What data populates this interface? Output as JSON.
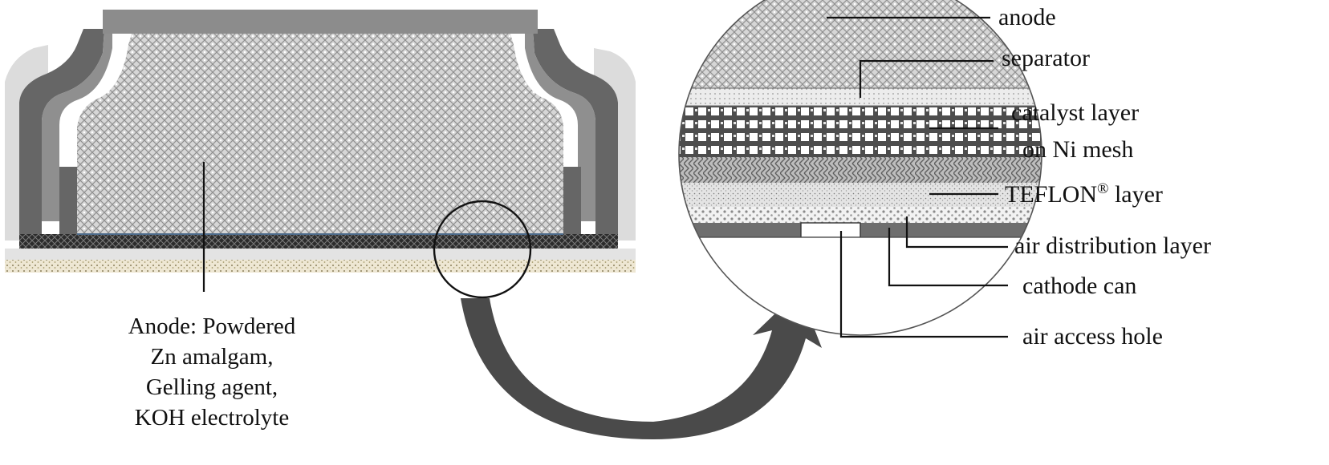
{
  "callouts": {
    "anode": "anode",
    "separator": "separator",
    "catalyst_line1": "catalyst layer",
    "catalyst_line2": "on Ni mesh",
    "teflon": "TEFLON",
    "teflon_mark": "®",
    "teflon_suffix": " layer",
    "air_distribution": "air distribution layer",
    "cathode_can": "cathode can",
    "air_access_hole": "air access hole"
  },
  "anode_caption": {
    "line1": "Anode: Powdered",
    "line2": "Zn amalgam,",
    "line3": "Gelling agent,",
    "line4": "KOH electrolyte"
  },
  "colors": {
    "anode_fill": "#cfcfcf",
    "dark_can": "#666666",
    "mid_can": "#8c8c8c",
    "light_gasket": "#dddddd",
    "cathode_strip": "#3a3a3a",
    "sand_layer": "#e7dfc8",
    "arrow": "#4a4a4a"
  }
}
